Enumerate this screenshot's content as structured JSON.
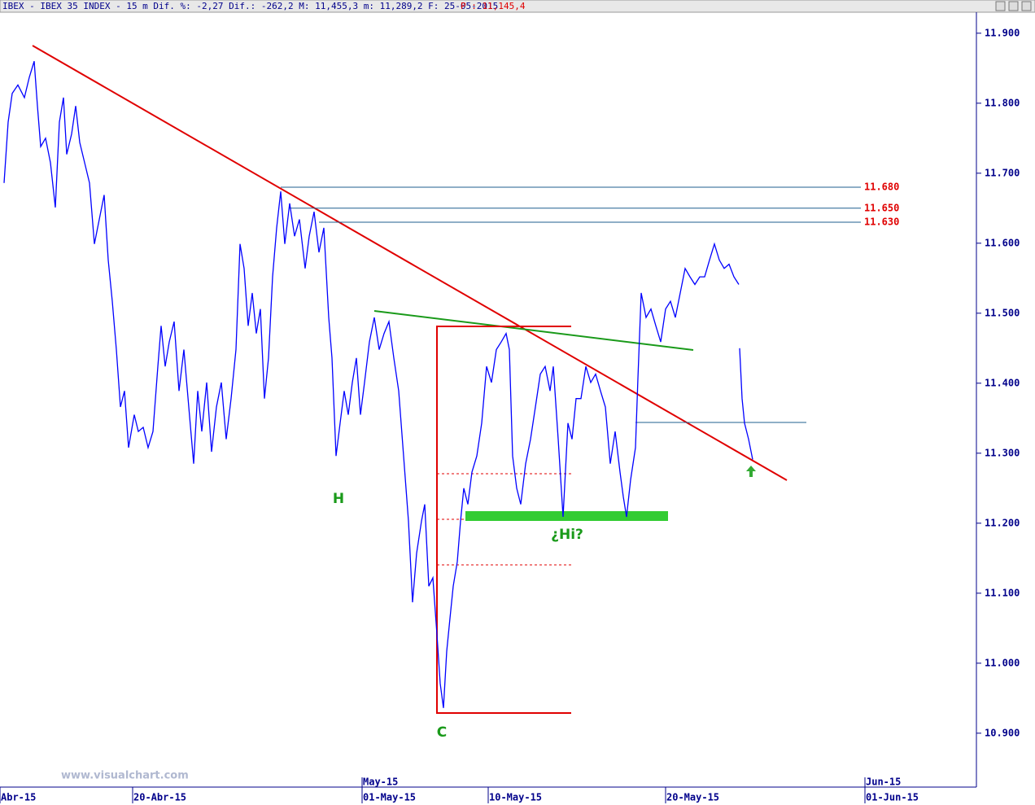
{
  "chart_data": {
    "type": "line",
    "title": "IBEX - IBEX 35 INDEX -  15 m Dif. %: -2,27 Dif.: -262,2 M: 11,455,3 m: 11,289,2 F: 25-05-2015",
    "title_price": "P : 11,145,4",
    "watermark": "www.visualchart.com",
    "xlim": [
      0,
      1200
    ],
    "xticks": [
      {
        "value": 0,
        "label": "Abr-15"
      },
      {
        "value": 163,
        "label": "20-Abr-15"
      },
      {
        "value": 445,
        "label": "01-May-15"
      },
      {
        "value": 600,
        "label": "10-May-15"
      },
      {
        "value": 818,
        "label": "20-May-15"
      },
      {
        "value": 1063,
        "label": "01-Jun-15"
      }
    ],
    "month_ticks": [
      {
        "value": 445,
        "label": "May-15"
      },
      {
        "value": 1063,
        "label": "Jun-15"
      }
    ],
    "ylim": [
      10823,
      11930
    ],
    "yticks": [
      {
        "value": 10900,
        "label": "10.900"
      },
      {
        "value": 11000,
        "label": "11.000"
      },
      {
        "value": 11100,
        "label": "11.100"
      },
      {
        "value": 11200,
        "label": "11.200"
      },
      {
        "value": 11300,
        "label": "11.300"
      },
      {
        "value": 11400,
        "label": "11.400"
      },
      {
        "value": 11500,
        "label": "11.500"
      },
      {
        "value": 11600,
        "label": "11.600"
      },
      {
        "value": 11700,
        "label": "11.700"
      },
      {
        "value": 11800,
        "label": "11.800"
      },
      {
        "value": 11900,
        "label": "11.900"
      }
    ],
    "levels": [
      {
        "value": 11680,
        "label": "11.680"
      },
      {
        "value": 11650,
        "label": "11.650"
      },
      {
        "value": 11630,
        "label": "11.630"
      }
    ],
    "annotations": [
      "H",
      "C",
      "¿Hi?"
    ],
    "series": [
      {
        "name": "IBEX 35",
        "color": "#0000ff",
        "x": [
          5,
          10,
          15,
          22,
          30,
          36,
          42,
          46,
          50,
          56,
          62,
          68,
          73,
          78,
          82,
          88,
          93,
          98,
          104,
          110,
          116,
          122,
          128,
          133,
          138,
          143,
          148,
          153,
          158,
          165,
          170,
          176,
          182,
          188,
          194,
          198,
          203,
          208,
          214,
          220,
          226,
          232,
          238,
          243,
          248,
          254,
          260,
          266,
          272,
          278,
          284,
          290,
          295,
          300,
          305,
          310,
          315,
          320,
          325,
          330,
          335,
          340,
          345,
          350,
          356,
          362,
          368,
          375,
          380,
          386,
          392,
          398,
          404,
          408,
          413,
          418,
          423,
          428,
          433,
          438,
          443,
          448,
          454,
          460,
          466,
          472,
          478,
          484,
          490,
          496,
          502,
          507,
          512,
          518,
          522,
          527,
          532,
          537,
          541,
          545,
          549,
          553,
          557,
          562,
          566,
          570,
          575,
          580,
          586,
          592,
          598,
          604,
          610,
          616,
          622,
          626,
          630,
          635,
          640,
          646,
          652,
          658,
          664,
          670,
          676,
          680,
          686,
          692,
          698,
          703,
          708,
          714,
          720,
          726,
          732,
          738,
          744,
          750,
          756,
          762,
          766,
          770,
          775,
          781,
          784,
          788,
          794,
          800,
          806,
          812,
          818,
          824,
          830,
          836,
          842,
          848,
          854,
          860,
          866,
          872,
          878,
          884,
          890,
          896,
          902,
          908,
          908,
          909,
          912,
          915,
          920,
          925
        ],
        "values": [
          11686,
          11773,
          11814,
          11826,
          11808,
          11837,
          11860,
          11796,
          11738,
          11750,
          11715,
          11651,
          11773,
          11808,
          11727,
          11756,
          11796,
          11744,
          11715,
          11686,
          11599,
          11634,
          11669,
          11576,
          11517,
          11448,
          11366,
          11389,
          11308,
          11355,
          11331,
          11337,
          11308,
          11331,
          11424,
          11482,
          11424,
          11459,
          11488,
          11389,
          11448,
          11366,
          11285,
          11389,
          11331,
          11401,
          11302,
          11366,
          11401,
          11320,
          11378,
          11448,
          11599,
          11564,
          11482,
          11529,
          11471,
          11506,
          11378,
          11436,
          11552,
          11622,
          11674,
          11599,
          11657,
          11610,
          11634,
          11564,
          11610,
          11645,
          11587,
          11622,
          11494,
          11436,
          11296,
          11343,
          11389,
          11355,
          11401,
          11436,
          11355,
          11401,
          11459,
          11494,
          11448,
          11471,
          11488,
          11436,
          11389,
          11296,
          11203,
          11087,
          11157,
          11203,
          11227,
          11110,
          11122,
          11041,
          10971,
          10936,
          11017,
          11064,
          11110,
          11145,
          11203,
          11250,
          11227,
          11273,
          11296,
          11343,
          11424,
          11401,
          11448,
          11459,
          11471,
          11448,
          11296,
          11250,
          11227,
          11285,
          11320,
          11366,
          11413,
          11424,
          11389,
          11424,
          11320,
          11209,
          11343,
          11320,
          11378,
          11378,
          11424,
          11401,
          11413,
          11389,
          11366,
          11285,
          11331,
          11273,
          11238,
          11209,
          11262,
          11308,
          11407,
          11529,
          11494,
          11506,
          11482,
          11459,
          11506,
          11517,
          11494,
          11529,
          11564,
          11552,
          11541,
          11552,
          11552,
          11576,
          11599,
          11576,
          11564,
          11570,
          11552,
          11541,
          null,
          11450,
          11378,
          11343,
          11320,
          11291
        ]
      }
    ]
  }
}
